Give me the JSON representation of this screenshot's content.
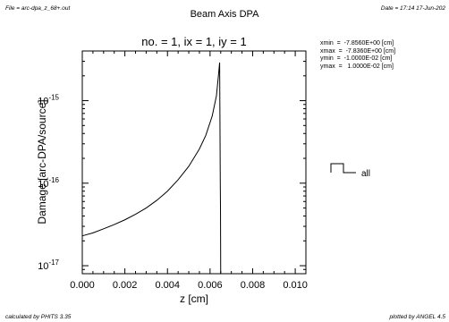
{
  "header": {
    "file_label": "File = arc-dpa_z_68+.out",
    "title": "Beam Axis DPA",
    "date_label": "Date = 17:14 17-Jun-202"
  },
  "footer": {
    "left": "calculated by PHITS 3.35",
    "right": "plotted by ANGEL 4.5"
  },
  "info": {
    "rows": [
      "xmin  =  -7.8560E+00 [cm]",
      "xmax  =  -7.8360E+00 [cm]",
      "ymin  =  -1.0000E-02 [cm]",
      "ymax  =   1.0000E-02 [cm]"
    ]
  },
  "chart_data": {
    "type": "line",
    "title": "no. =  1,    ix =  1,    iy =  1",
    "xlabel": "z [cm]",
    "ylabel": "Damage [arc-DPA/source]",
    "xlim": [
      0.0,
      0.0105
    ],
    "ylim": [
      8e-18,
      4e-15
    ],
    "yscale": "log",
    "x_ticks": [
      "0.000",
      "0.002",
      "0.004",
      "0.006",
      "0.008",
      "0.010"
    ],
    "y_ticks": [
      "10^-17",
      "10^-16",
      "10^-15"
    ],
    "legend": {
      "position": "right",
      "entries": [
        "all"
      ]
    },
    "series": [
      {
        "name": "all",
        "color": "#000000",
        "points": [
          [
            0.0,
            2.3e-17
          ],
          [
            0.0005,
            2.5e-17
          ],
          [
            0.001,
            2.8e-17
          ],
          [
            0.0015,
            3.15e-17
          ],
          [
            0.002,
            3.6e-17
          ],
          [
            0.0025,
            4.2e-17
          ],
          [
            0.003,
            5e-17
          ],
          [
            0.0035,
            6.2e-17
          ],
          [
            0.004,
            8e-17
          ],
          [
            0.0045,
            1.1e-16
          ],
          [
            0.005,
            1.6e-16
          ],
          [
            0.0055,
            2.6e-16
          ],
          [
            0.0058,
            3.8e-16
          ],
          [
            0.0061,
            6.5e-16
          ],
          [
            0.0063,
            1.15e-15
          ],
          [
            0.00635,
            1.55e-15
          ],
          [
            0.0064,
            2.1e-15
          ],
          [
            0.00645,
            2.9e-15
          ],
          [
            0.00648,
            1e-16
          ],
          [
            0.00649,
            5e-17
          ],
          [
            0.0065,
            1e-18
          ]
        ]
      }
    ]
  }
}
